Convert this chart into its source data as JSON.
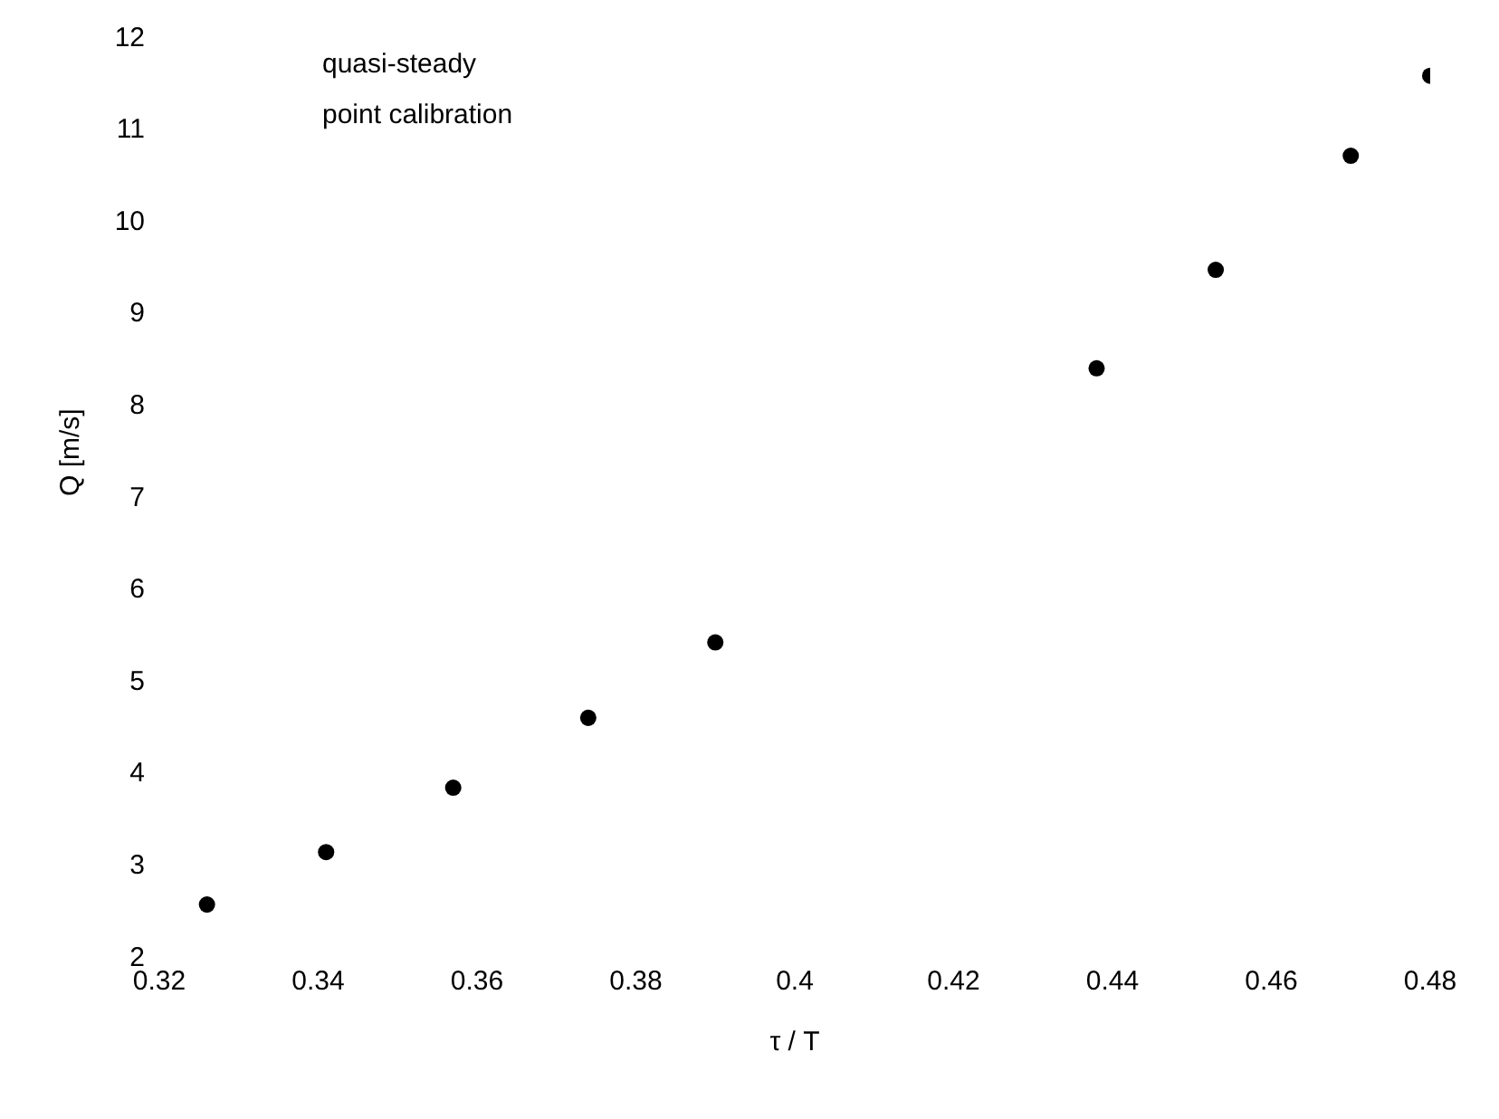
{
  "chart_data": {
    "type": "scatter",
    "xlabel": "τ / T",
    "ylabel": "Q [m/s]",
    "annotations": [
      "quasi-steady",
      "point calibration"
    ],
    "x": [
      0.326,
      0.341,
      0.357,
      0.374,
      0.39,
      0.438,
      0.453,
      0.47,
      0.48
    ],
    "series": [
      {
        "color": "#000000",
        "values": [
          2.56,
          3.13,
          3.83,
          4.59,
          5.41,
          8.39,
          9.46,
          10.7,
          11.57
        ]
      }
    ],
    "xlim": [
      0.32,
      0.48
    ],
    "xticks": [
      0.32,
      0.34,
      0.36,
      0.38,
      0.4,
      0.42,
      0.44,
      0.46,
      0.48
    ],
    "ylim": [
      2,
      12
    ],
    "yticks": [
      2,
      3,
      4,
      5,
      6,
      7,
      8,
      9,
      10,
      11,
      12
    ],
    "grid": false,
    "legend": false,
    "marker": "circle"
  }
}
